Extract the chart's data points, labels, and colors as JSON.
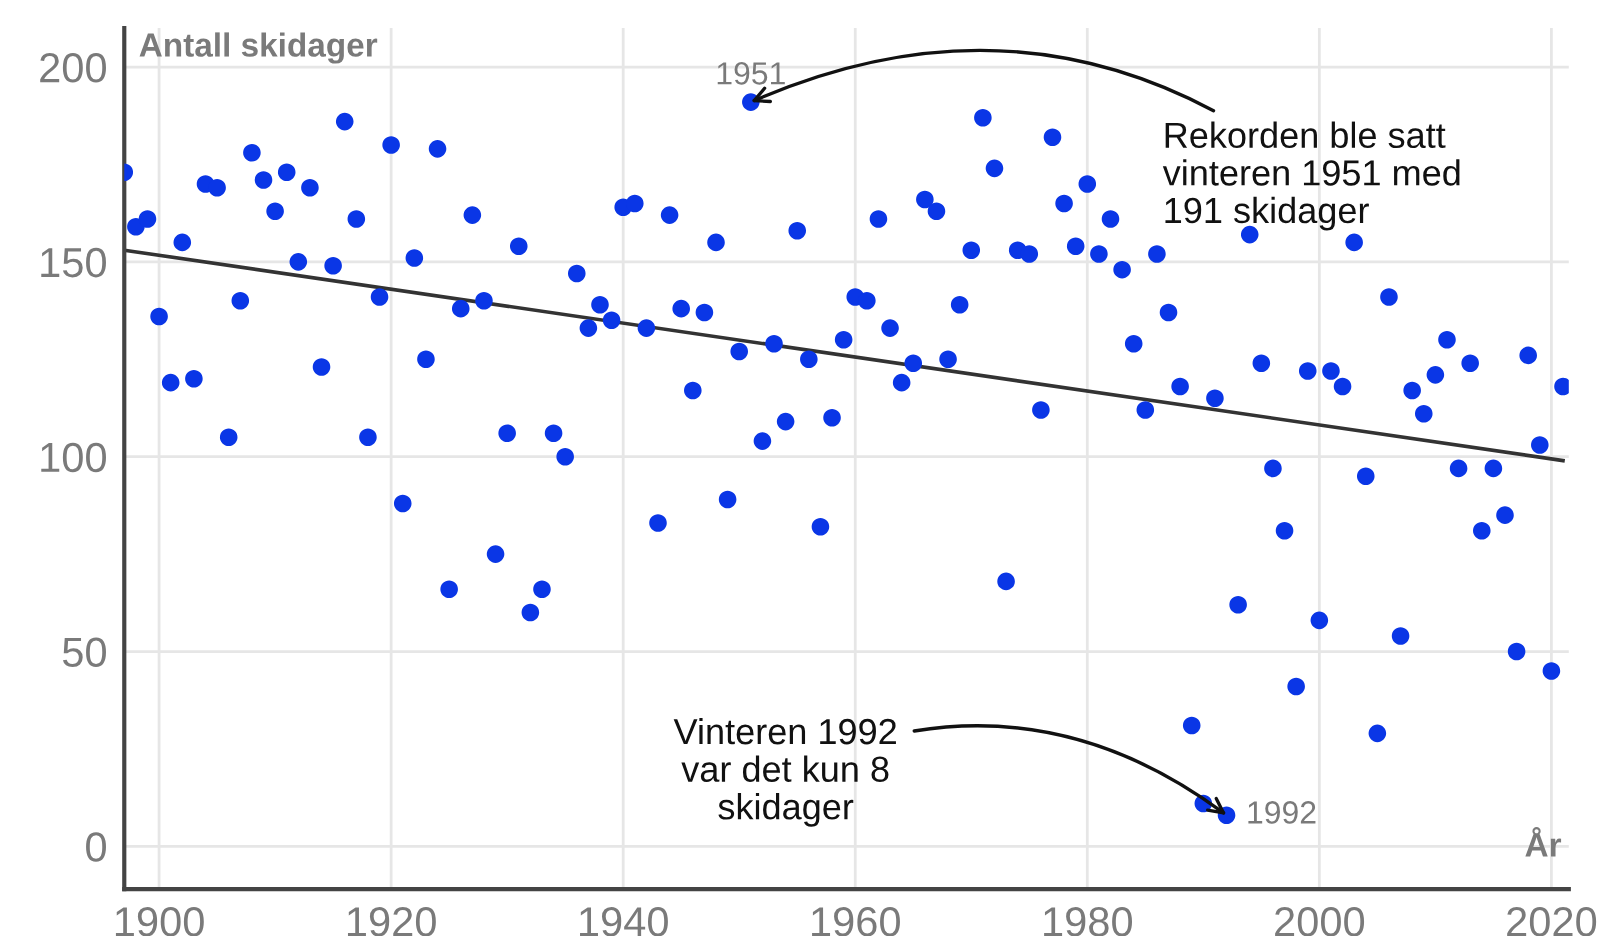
{
  "chart_data": {
    "type": "scatter",
    "ylabel": "Antall skidager",
    "xlabel": "År",
    "xlim": [
      1897,
      2021.5
    ],
    "ylim": [
      -11,
      210
    ],
    "xticks": [
      1900,
      1920,
      1940,
      1960,
      1980,
      2000,
      2020
    ],
    "yticks": [
      0,
      50,
      100,
      150,
      200
    ],
    "grid": true,
    "series": [
      {
        "type": "scatter",
        "marker": "circle",
        "color": "#0a36e6",
        "x": [
          1897,
          1898,
          1899,
          1900,
          1901,
          1902,
          1903,
          1904,
          1905,
          1906,
          1907,
          1908,
          1909,
          1910,
          1911,
          1912,
          1913,
          1914,
          1915,
          1916,
          1917,
          1918,
          1919,
          1920,
          1921,
          1922,
          1923,
          1924,
          1925,
          1926,
          1927,
          1928,
          1929,
          1930,
          1931,
          1932,
          1933,
          1934,
          1935,
          1936,
          1937,
          1938,
          1939,
          1940,
          1941,
          1942,
          1943,
          1944,
          1945,
          1946,
          1947,
          1948,
          1949,
          1950,
          1951,
          1952,
          1953,
          1954,
          1955,
          1956,
          1957,
          1958,
          1959,
          1960,
          1961,
          1962,
          1963,
          1964,
          1965,
          1966,
          1967,
          1968,
          1969,
          1970,
          1971,
          1972,
          1973,
          1974,
          1975,
          1976,
          1977,
          1978,
          1979,
          1980,
          1981,
          1982,
          1983,
          1984,
          1985,
          1986,
          1987,
          1988,
          1989,
          1990,
          1991,
          1992,
          1993,
          1994,
          1995,
          1996,
          1997,
          1998,
          1999,
          2000,
          2001,
          2002,
          2003,
          2004,
          2005,
          2006,
          2007,
          2008,
          2009,
          2010,
          2011,
          2012,
          2013,
          2014,
          2015,
          2016,
          2017,
          2018,
          2019,
          2020,
          2021
        ],
        "values": [
          173,
          159,
          161,
          136,
          119,
          155,
          120,
          170,
          169,
          105,
          140,
          178,
          171,
          163,
          173,
          150,
          169,
          123,
          149,
          186,
          161,
          105,
          141,
          180,
          88,
          151,
          125,
          179,
          66,
          138,
          162,
          140,
          75,
          106,
          154,
          60,
          66,
          106,
          100,
          147,
          133,
          139,
          135,
          164,
          165,
          133,
          83,
          162,
          138,
          117,
          137,
          155,
          89,
          127,
          191,
          104,
          129,
          109,
          158,
          125,
          82,
          110,
          130,
          141,
          140,
          161,
          133,
          119,
          124,
          166,
          163,
          125,
          139,
          153,
          187,
          174,
          68,
          153,
          152,
          112,
          182,
          165,
          154,
          170,
          152,
          161,
          148,
          129,
          112,
          152,
          137,
          118,
          31,
          11,
          115,
          8,
          62,
          157,
          124,
          97,
          81,
          41,
          122,
          58,
          122,
          118,
          155,
          95,
          29,
          141,
          54,
          117,
          111,
          121,
          130,
          97,
          124,
          81,
          97,
          85,
          50,
          126,
          103,
          45,
          118
        ]
      },
      {
        "type": "line",
        "color": "#333333",
        "x": [
          1897,
          2021
        ],
        "values": [
          153,
          99
        ]
      }
    ],
    "annotations": [
      "1951",
      {
        "text": "Rekorden ble satt\nvinteren 1951 med\n191 skidager",
        "x": 1951,
        "y": 191
      },
      "1992",
      {
        "text": "Vinteren 1992\nvar det kun 8\nskidager",
        "x": 1992,
        "y": 8
      }
    ]
  }
}
